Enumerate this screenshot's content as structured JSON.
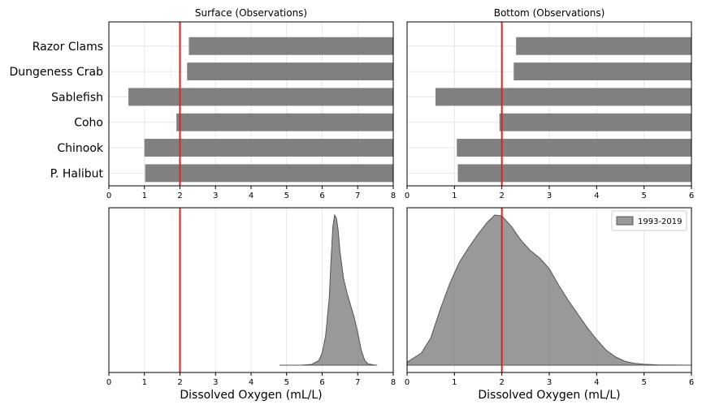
{
  "chart_data": [
    {
      "type": "bar",
      "orientation": "horizontal",
      "title": "Surface (Observations)",
      "categories": [
        "Razor Clams",
        "Dungeness Crab",
        "Sablefish",
        "Coho",
        "Chinook",
        "P. Halibut"
      ],
      "ranges": [
        [
          2.25,
          8
        ],
        [
          2.2,
          8
        ],
        [
          0.55,
          8
        ],
        [
          1.9,
          8
        ],
        [
          1.0,
          8
        ],
        [
          1.02,
          8
        ]
      ],
      "xlim": [
        0,
        8
      ],
      "xticks": [
        0,
        1,
        2,
        3,
        4,
        5,
        6,
        7,
        8
      ],
      "threshold": 2,
      "bar_color": "#808080",
      "threshold_color": "#d62728",
      "grid": true
    },
    {
      "type": "bar",
      "orientation": "horizontal",
      "title": "Bottom (Observations)",
      "categories": [
        "Razor Clams",
        "Dungeness Crab",
        "Sablefish",
        "Coho",
        "Chinook",
        "P. Halibut"
      ],
      "ranges": [
        [
          2.3,
          6
        ],
        [
          2.25,
          6
        ],
        [
          0.6,
          6
        ],
        [
          1.95,
          6
        ],
        [
          1.05,
          6
        ],
        [
          1.07,
          6
        ]
      ],
      "xlim": [
        0,
        6
      ],
      "xticks": [
        0,
        1,
        2,
        3,
        4,
        5,
        6
      ],
      "threshold": 2,
      "bar_color": "#808080",
      "threshold_color": "#d62728",
      "grid": true
    },
    {
      "type": "area",
      "xlabel": "Dissolved Oxygen (mL/L)",
      "xlim": [
        0,
        8
      ],
      "xticks": [
        0,
        1,
        2,
        3,
        4,
        5,
        6,
        7,
        8
      ],
      "threshold": 2,
      "series": [
        {
          "x": [
            4.8,
            5.4,
            5.7,
            5.9,
            6.0,
            6.1,
            6.2,
            6.25,
            6.3,
            6.35,
            6.4,
            6.45,
            6.5,
            6.6,
            6.7,
            6.8,
            6.9,
            7.0,
            7.1,
            7.2,
            7.3,
            7.5,
            7.55
          ],
          "density": [
            0.0,
            0.0,
            0.005,
            0.03,
            0.08,
            0.2,
            0.45,
            0.7,
            0.92,
            1.0,
            0.98,
            0.9,
            0.76,
            0.58,
            0.48,
            0.4,
            0.32,
            0.22,
            0.1,
            0.03,
            0.008,
            0.0,
            0.0
          ],
          "color": "#808080"
        }
      ],
      "grid": true
    },
    {
      "type": "area",
      "xlabel": "Dissolved Oxygen (mL/L)",
      "xlim": [
        0,
        6
      ],
      "xticks": [
        0,
        1,
        2,
        3,
        4,
        5,
        6
      ],
      "threshold": 2,
      "legend": [
        "1993-2019"
      ],
      "legend_position": "top-right",
      "series": [
        {
          "name": "1993-2019",
          "x": [
            0.0,
            0.3,
            0.5,
            0.7,
            0.9,
            1.1,
            1.3,
            1.5,
            1.7,
            1.85,
            2.0,
            2.2,
            2.4,
            2.6,
            2.8,
            3.0,
            3.2,
            3.4,
            3.6,
            3.8,
            4.0,
            4.2,
            4.4,
            4.6,
            4.8,
            5.0,
            5.3,
            6.0
          ],
          "density": [
            0.02,
            0.08,
            0.18,
            0.37,
            0.54,
            0.68,
            0.78,
            0.87,
            0.95,
            0.995,
            0.99,
            0.92,
            0.83,
            0.76,
            0.71,
            0.64,
            0.53,
            0.43,
            0.34,
            0.25,
            0.17,
            0.1,
            0.055,
            0.025,
            0.012,
            0.006,
            0.002,
            0.0
          ],
          "color": "#808080"
        }
      ],
      "grid": true
    }
  ]
}
